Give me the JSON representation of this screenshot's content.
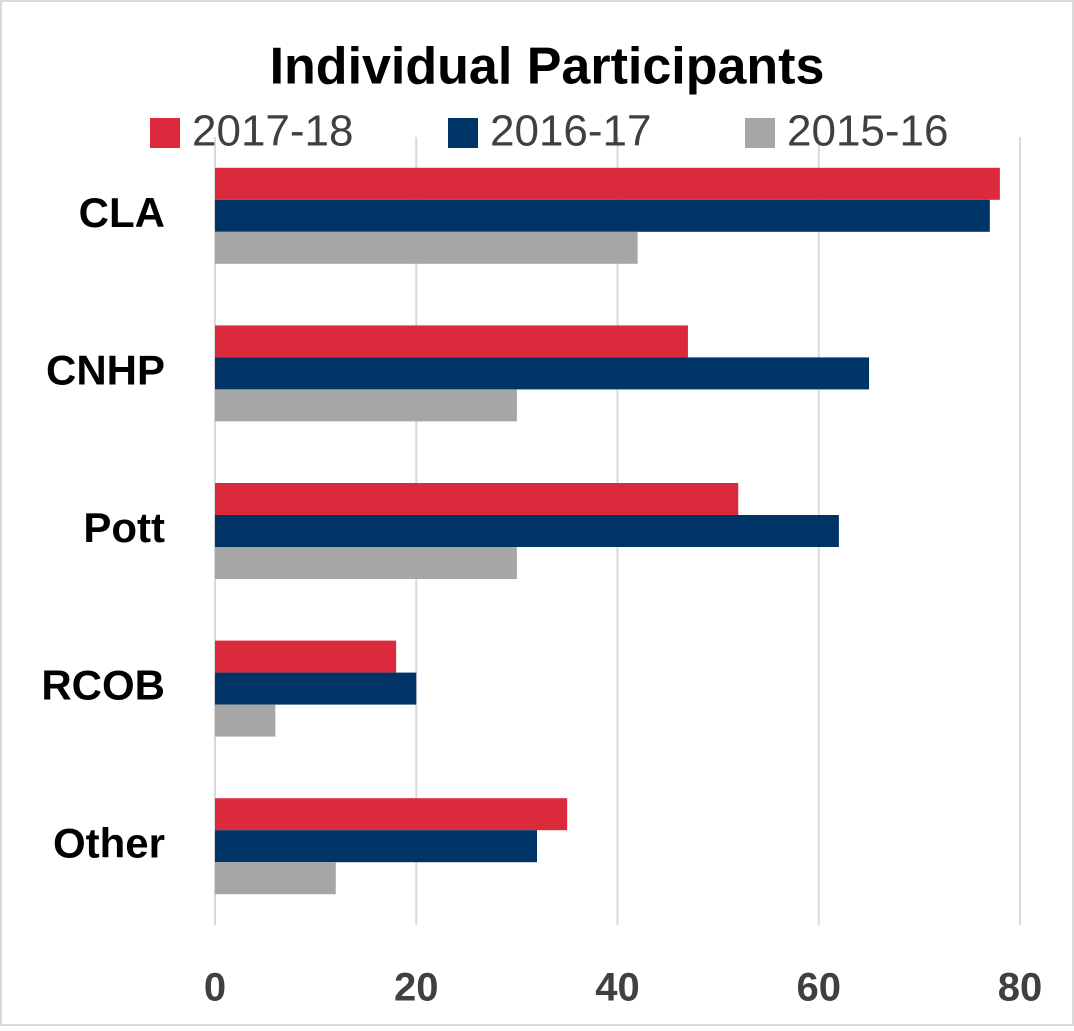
{
  "chart_data": {
    "type": "bar",
    "orientation": "horizontal",
    "title": "Individual Participants",
    "categories": [
      "CLA",
      "CNHP",
      "Pott",
      "RCOB",
      "Other"
    ],
    "series": [
      {
        "name": "2017-18",
        "color": "#dc2a3d",
        "values": [
          78,
          47,
          52,
          18,
          35
        ]
      },
      {
        "name": "2016-17",
        "color": "#003366",
        "values": [
          77,
          65,
          62,
          20,
          32
        ]
      },
      {
        "name": "2015-16",
        "color": "#a6a6a6",
        "values": [
          42,
          30,
          30,
          6,
          12
        ]
      }
    ],
    "xlim": [
      0,
      80
    ],
    "xticks": [
      0,
      20,
      40,
      60,
      80
    ],
    "grid": true,
    "legend": "top"
  }
}
